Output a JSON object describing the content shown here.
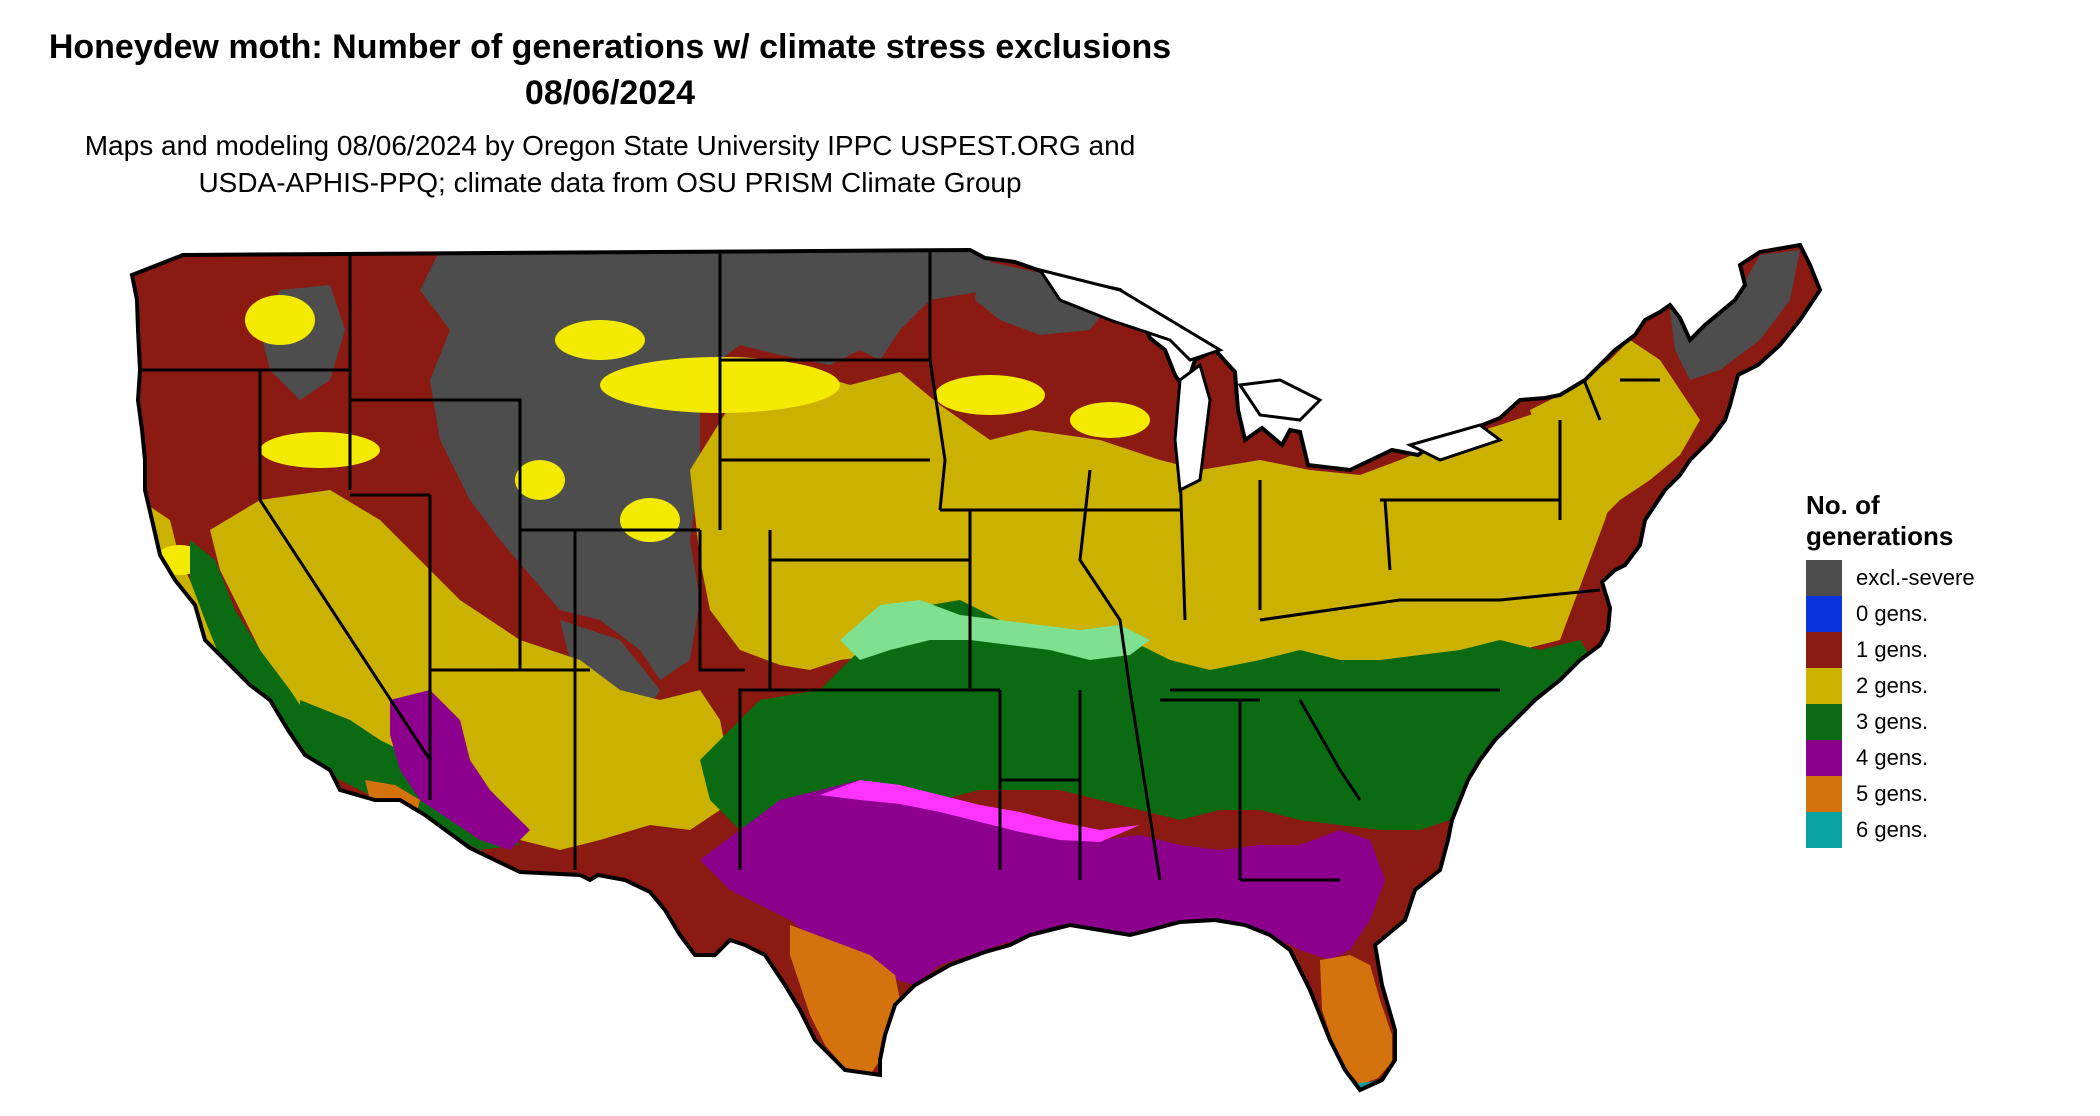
{
  "header": {
    "title_line1": "Honeydew moth: Number of generations w/ climate stress exclusions",
    "title_line2": "08/06/2024",
    "subtitle_line1": "Maps and modeling 08/06/2024 by Oregon State University IPPC USPEST.ORG and",
    "subtitle_line2": "USDA-APHIS-PPQ; climate data from OSU PRISM Climate Group"
  },
  "legend": {
    "title_line1": "No. of",
    "title_line2": "generations",
    "items": [
      {
        "label": "excl.-severe",
        "color": "#4d4d4d"
      },
      {
        "label": "0 gens.",
        "color": "#0b33dd"
      },
      {
        "label": "1 gens.",
        "color": "#8b1a12"
      },
      {
        "label": "2 gens.",
        "color": "#cbb100"
      },
      {
        "label": "3 gens.",
        "color": "#0a6b12"
      },
      {
        "label": "4 gens.",
        "color": "#8d008d"
      },
      {
        "label": "5 gens.",
        "color": "#d4720e"
      },
      {
        "label": "6 gens.",
        "color": "#0aa3a3"
      }
    ]
  },
  "map_colors": {
    "excl_severe": "#4d4d4d",
    "gen1": "#8b1a12",
    "gen2": "#cbb100",
    "gen2_light": "#f3ea00",
    "gen3": "#0a6b12",
    "gen3_light": "#7fe08f",
    "gen4": "#8d008d",
    "gen4_light": "#ff33ff",
    "gen5": "#d4720e",
    "gen6": "#0aa3a3",
    "state_border": "#000000"
  }
}
